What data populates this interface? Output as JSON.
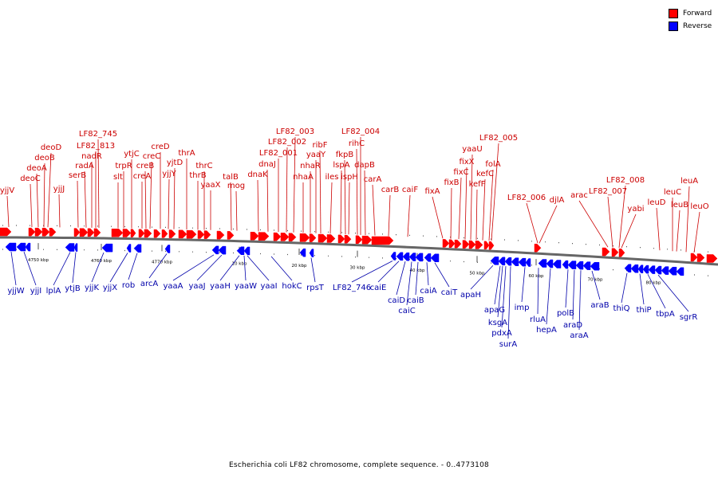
{
  "legend": [
    {
      "label": "Forward",
      "color": "#ff0000"
    },
    {
      "label": "Reverse",
      "color": "#0000ff"
    }
  ],
  "caption": "Escherichia coli LF82 chromosome, complete sequence. - 0..4773108",
  "colors": {
    "forward": "#ff0000",
    "forward_label": "#cc0000",
    "reverse": "#0000ff",
    "reverse_label": "#0000aa",
    "backbone": "#666666"
  },
  "ticks": [
    "4750 kbp",
    "4760 kbp",
    "4770 kbp",
    "10 kbp",
    "20 kbp",
    "30 kbp",
    "40 kbp",
    "50 kbp",
    "60 kbp",
    "70 kbp",
    "80 kbp"
  ],
  "forward_genes": [
    "yjjV",
    "deoC",
    "deoA",
    "deoB",
    "deoD",
    "yjjJ",
    "serB",
    "radA",
    "nadR",
    "LF82_813",
    "LF82_745",
    "slt",
    "trpR",
    "ytjC",
    "creB",
    "creA",
    "creC",
    "creD",
    "yjjY",
    "yjtD",
    "thrA",
    "thrB",
    "thrC",
    "yaaX",
    "talB",
    "mog",
    "dnaK",
    "dnaJ",
    "LF82_001",
    "LF82_002",
    "LF82_003",
    "nhaA",
    "nhaR",
    "yaaY",
    "ribF",
    "iles",
    "lspA",
    "ispH",
    "fkpB",
    "rihC",
    "LF82_004",
    "dapB",
    "carA",
    "carB",
    "caiF",
    "fixA",
    "fixB",
    "fixC",
    "fixX",
    "yaaU",
    "kefF",
    "kefC",
    "folA",
    "LF82_005",
    "LF82_006",
    "djlA",
    "arac",
    "LF82_007",
    "LF82_008",
    "yabi",
    "leuD",
    "leuC",
    "leuB",
    "leuA",
    "leuO"
  ],
  "reverse_genes": [
    "yjjW",
    "yjjI",
    "lplA",
    "ytjB",
    "yjjK",
    "yjjX",
    "rob",
    "arcA",
    "yaaA",
    "yaaJ",
    "yaaH",
    "yaaW",
    "yaaI",
    "hokC",
    "rpsT",
    "LF82_746",
    "caiE",
    "caiD",
    "caiC",
    "caiB",
    "caiA",
    "caiT",
    "apaH",
    "apaG",
    "ksgA",
    "pdxA",
    "surA",
    "imp",
    "rluA",
    "hepA",
    "polB",
    "araD",
    "araA",
    "araB",
    "thiQ",
    "thiP",
    "tbpA",
    "sgrR"
  ]
}
